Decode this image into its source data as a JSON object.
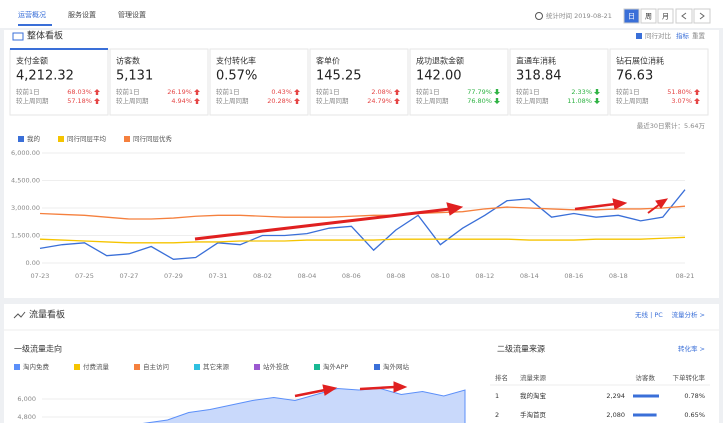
{
  "nav": {
    "tabs": [
      "运营概况",
      "服务设置",
      "管理设置"
    ],
    "active": 0,
    "stat_time": "统计时间 2019-08-21",
    "periods": [
      "日",
      "周",
      "月"
    ],
    "active_period": 0
  },
  "overview": {
    "title": "整体看板",
    "compare": "同行对比",
    "indicators": "指标",
    "reset": "重置",
    "total": "最近30日累计：5.64万",
    "metrics": [
      {
        "name": "支付金额",
        "value": "4,212.32",
        "rows": [
          {
            "label": "较前1日",
            "change": "68.03%",
            "direction": "up"
          },
          {
            "label": "较上周同期",
            "change": "57.18%",
            "direction": "up"
          }
        ]
      },
      {
        "name": "访客数",
        "value": "5,131",
        "rows": [
          {
            "label": "较前1日",
            "change": "26.19%",
            "direction": "up"
          },
          {
            "label": "较上周同期",
            "change": "4.94%",
            "direction": "up"
          }
        ]
      },
      {
        "name": "支付转化率",
        "value": "0.57%",
        "rows": [
          {
            "label": "较前1日",
            "change": "0.43%",
            "direction": "up"
          },
          {
            "label": "较上周同期",
            "change": "20.28%",
            "direction": "up"
          }
        ]
      },
      {
        "name": "客单价",
        "value": "145.25",
        "rows": [
          {
            "label": "较前1日",
            "change": "2.08%",
            "direction": "up"
          },
          {
            "label": "较上周同期",
            "change": "24.79%",
            "direction": "up"
          }
        ]
      },
      {
        "name": "成功退款金额",
        "value": "142.00",
        "rows": [
          {
            "label": "较前1日",
            "change": "77.79%",
            "direction": "down"
          },
          {
            "label": "较上周同期",
            "change": "76.80%",
            "direction": "down"
          }
        ]
      },
      {
        "name": "直通车消耗",
        "value": "318.84",
        "rows": [
          {
            "label": "较前1日",
            "change": "2.33%",
            "direction": "down"
          },
          {
            "label": "较上周同期",
            "change": "11.08%",
            "direction": "down"
          }
        ]
      },
      {
        "name": "钻石展位消耗",
        "value": "76.63",
        "rows": [
          {
            "label": "较前1日",
            "change": "51.80%",
            "direction": "up"
          },
          {
            "label": "较上周同期",
            "change": "3.07%",
            "direction": "up"
          }
        ]
      }
    ]
  },
  "chart_data": [
    {
      "type": "line",
      "grid": true,
      "categories": [
        "07-23",
        null,
        "07-25",
        null,
        "07-27",
        null,
        "07-29",
        null,
        "07-31",
        null,
        "08-02",
        null,
        "08-04",
        null,
        "08-06",
        null,
        "08-08",
        null,
        "08-10",
        null,
        "08-12",
        null,
        "08-14",
        null,
        "08-16",
        null,
        "08-18",
        null,
        null,
        "08-21"
      ],
      "ylim": [
        0,
        6000
      ],
      "yticks": [
        {
          "value": 0,
          "label": "0.00"
        },
        {
          "value": 1500,
          "label": "1,500.00"
        },
        {
          "value": 3000,
          "label": "3,000.00"
        },
        {
          "value": 4500,
          "label": "4,500.00"
        },
        {
          "value": 6000,
          "label": "6,000.00"
        }
      ],
      "series": [
        {
          "name": "我的",
          "color": "#3a6fd8",
          "values": [
            800,
            1000,
            1100,
            400,
            500,
            900,
            200,
            300,
            1100,
            1000,
            1500,
            1500,
            1600,
            1900,
            2000,
            700,
            1800,
            2600,
            1000,
            1900,
            2600,
            3400,
            3500,
            2500,
            2700,
            2500,
            2600,
            2300,
            2500,
            4000
          ]
        },
        {
          "name": "同行同层平均",
          "color": "#f5c400",
          "values": [
            1300,
            1250,
            1200,
            1150,
            1100,
            1100,
            1100,
            1150,
            1150,
            1200,
            1200,
            1200,
            1250,
            1250,
            1250,
            1250,
            1300,
            1300,
            1300,
            1300,
            1300,
            1300,
            1250,
            1250,
            1250,
            1300,
            1300,
            1300,
            1350,
            1400
          ]
        },
        {
          "name": "同行同层优秀",
          "color": "#f5803e",
          "values": [
            2700,
            2650,
            2600,
            2500,
            2400,
            2400,
            2450,
            2550,
            2600,
            2600,
            2550,
            2500,
            2500,
            2500,
            2550,
            2600,
            2600,
            2700,
            2750,
            2800,
            2950,
            3050,
            3000,
            2950,
            2900,
            2900,
            2950,
            2950,
            3000,
            3100
          ]
        }
      ]
    },
    {
      "type": "area",
      "ylim": [
        3600,
        7200
      ],
      "yticks": [
        {
          "value": 4800,
          "label": "4,800"
        },
        {
          "value": 6000,
          "label": "6,000"
        }
      ],
      "series": [
        {
          "name": "淘内免费",
          "color": "#5b8ff9",
          "values": [
            4000,
            4100,
            4200,
            4300,
            4200,
            4400,
            4600,
            5100,
            5300,
            5600,
            5900,
            6100,
            5900,
            6300,
            6700,
            6600,
            6700,
            6300,
            6500,
            6200,
            6600
          ]
        },
        {
          "name": "付费流量",
          "color": "#f5c400"
        },
        {
          "name": "自主访问",
          "color": "#f5803e"
        },
        {
          "name": "其它来源",
          "color": "#2fc0e0"
        },
        {
          "name": "站外投放",
          "color": "#9b59d0"
        },
        {
          "name": "淘外APP",
          "color": "#19b893"
        },
        {
          "name": "淘外网站",
          "color": "#3a6fd8"
        }
      ]
    }
  ],
  "traffic": {
    "title": "流量看板",
    "devices": "无线 | PC",
    "analysis": "流量分析 >",
    "flow_title": "一级流量走向"
  },
  "sources": {
    "title": "二级流量来源",
    "link": "转化率 >",
    "columns": [
      "排名",
      "流量来源",
      "访客数",
      "下单转化率"
    ],
    "rows": [
      {
        "rank": "1",
        "source": "我的淘宝",
        "visitors": {
          "value": 2294,
          "label": "2,294"
        },
        "rate": "0.78%"
      },
      {
        "rank": "2",
        "source": "手淘首页",
        "visitors": {
          "value": 2080,
          "label": "2,080"
        },
        "rate": "0.65%"
      }
    ]
  }
}
